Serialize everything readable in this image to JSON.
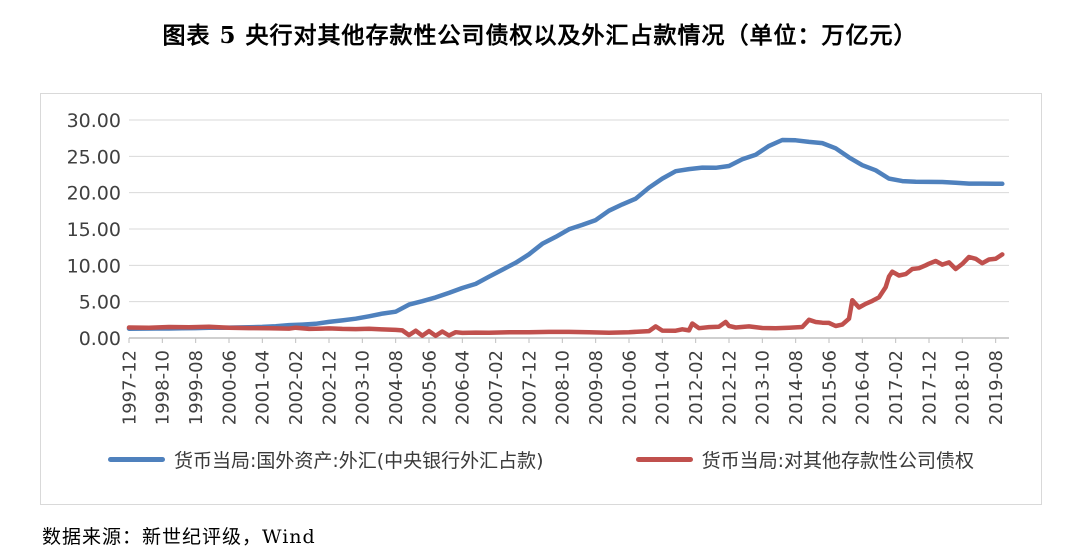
{
  "title": "图表 5  央行对其他存款性公司债权以及外汇占款情况（单位：万亿元）",
  "source_note": "数据来源：新世纪评级，Wind",
  "colors": {
    "series_fx_blue": "#4F81BD",
    "series_odc_red": "#C0504D",
    "grid": "#D9D9D9",
    "axis": "#BFBFBF",
    "tick_label": "#404040"
  },
  "chart_data": {
    "type": "line",
    "title": "央行对其他存款性公司债权以及外汇占款情况",
    "unit": "万亿元",
    "grid": "horizontal",
    "legend_position": "bottom",
    "ylim": [
      0,
      30
    ],
    "ytick_labels": [
      "0.00",
      "5.00",
      "10.00",
      "15.00",
      "20.00",
      "25.00",
      "30.00"
    ],
    "x_start": "1997-12",
    "x_total_months": 264,
    "xtick_interval_months": 10,
    "xtick_labels": [
      "1997-12",
      "1998-10",
      "1999-08",
      "2000-06",
      "2001-04",
      "2002-02",
      "2002-12",
      "2003-10",
      "2004-08",
      "2005-06",
      "2006-04",
      "2007-02",
      "2007-12",
      "2008-10",
      "2009-08",
      "2010-06",
      "2011-04",
      "2012-02",
      "2012-12",
      "2013-10",
      "2014-08",
      "2015-06",
      "2016-04",
      "2017-02",
      "2017-12",
      "2018-10",
      "2019-08"
    ],
    "series": [
      {
        "name": "货币当局:国外资产:外汇(中央银行外汇占款)",
        "color": "#4F81BD",
        "points": [
          [
            "1997-12",
            1.28
          ],
          [
            "1998-04",
            1.3
          ],
          [
            "1998-08",
            1.31
          ],
          [
            "1998-12",
            1.31
          ],
          [
            "1999-04",
            1.34
          ],
          [
            "1999-08",
            1.36
          ],
          [
            "1999-12",
            1.41
          ],
          [
            "2000-04",
            1.42
          ],
          [
            "2000-08",
            1.44
          ],
          [
            "2000-12",
            1.48
          ],
          [
            "2001-04",
            1.53
          ],
          [
            "2001-08",
            1.62
          ],
          [
            "2001-12",
            1.77
          ],
          [
            "2002-04",
            1.84
          ],
          [
            "2002-08",
            1.96
          ],
          [
            "2002-12",
            2.21
          ],
          [
            "2003-04",
            2.42
          ],
          [
            "2003-08",
            2.66
          ],
          [
            "2003-12",
            2.98
          ],
          [
            "2004-04",
            3.36
          ],
          [
            "2004-08",
            3.62
          ],
          [
            "2004-12",
            4.59
          ],
          [
            "2005-04",
            5.07
          ],
          [
            "2005-08",
            5.59
          ],
          [
            "2005-12",
            6.21
          ],
          [
            "2006-04",
            6.88
          ],
          [
            "2006-08",
            7.45
          ],
          [
            "2006-12",
            8.44
          ],
          [
            "2007-04",
            9.4
          ],
          [
            "2007-08",
            10.35
          ],
          [
            "2007-12",
            11.52
          ],
          [
            "2008-04",
            12.96
          ],
          [
            "2008-08",
            13.91
          ],
          [
            "2008-12",
            14.96
          ],
          [
            "2009-04",
            15.56
          ],
          [
            "2009-08",
            16.22
          ],
          [
            "2009-12",
            17.52
          ],
          [
            "2010-04",
            18.38
          ],
          [
            "2010-08",
            19.17
          ],
          [
            "2010-12",
            20.68
          ],
          [
            "2011-04",
            21.93
          ],
          [
            "2011-08",
            22.96
          ],
          [
            "2011-12",
            23.24
          ],
          [
            "2012-04",
            23.45
          ],
          [
            "2012-08",
            23.42
          ],
          [
            "2012-12",
            23.67
          ],
          [
            "2013-04",
            24.59
          ],
          [
            "2013-08",
            25.22
          ],
          [
            "2013-12",
            26.43
          ],
          [
            "2014-04",
            27.25
          ],
          [
            "2014-08",
            27.21
          ],
          [
            "2014-12",
            26.99
          ],
          [
            "2015-04",
            26.82
          ],
          [
            "2015-08",
            26.1
          ],
          [
            "2015-12",
            24.85
          ],
          [
            "2016-04",
            23.78
          ],
          [
            "2016-08",
            23.08
          ],
          [
            "2016-12",
            21.94
          ],
          [
            "2017-04",
            21.59
          ],
          [
            "2017-08",
            21.51
          ],
          [
            "2017-12",
            21.48
          ],
          [
            "2018-04",
            21.47
          ],
          [
            "2018-08",
            21.36
          ],
          [
            "2018-12",
            21.25
          ],
          [
            "2019-04",
            21.25
          ],
          [
            "2019-08",
            21.23
          ],
          [
            "2019-10",
            21.22
          ]
        ]
      },
      {
        "name": "货币当局:对其他存款性公司债权",
        "color": "#C0504D",
        "points": [
          [
            "1997-12",
            1.44
          ],
          [
            "1998-06",
            1.4
          ],
          [
            "1998-12",
            1.51
          ],
          [
            "1999-06",
            1.48
          ],
          [
            "1999-12",
            1.54
          ],
          [
            "2000-06",
            1.42
          ],
          [
            "2000-12",
            1.36
          ],
          [
            "2001-06",
            1.33
          ],
          [
            "2001-12",
            1.3
          ],
          [
            "2002-02",
            1.42
          ],
          [
            "2002-06",
            1.25
          ],
          [
            "2002-10",
            1.3
          ],
          [
            "2002-12",
            1.32
          ],
          [
            "2003-04",
            1.25
          ],
          [
            "2003-08",
            1.22
          ],
          [
            "2003-12",
            1.26
          ],
          [
            "2004-04",
            1.18
          ],
          [
            "2004-08",
            1.12
          ],
          [
            "2004-10",
            1.05
          ],
          [
            "2004-12",
            0.4
          ],
          [
            "2005-02",
            1.0
          ],
          [
            "2005-04",
            0.32
          ],
          [
            "2005-06",
            0.95
          ],
          [
            "2005-08",
            0.3
          ],
          [
            "2005-10",
            0.9
          ],
          [
            "2005-12",
            0.35
          ],
          [
            "2006-02",
            0.8
          ],
          [
            "2006-04",
            0.7
          ],
          [
            "2006-08",
            0.75
          ],
          [
            "2006-12",
            0.72
          ],
          [
            "2007-06",
            0.78
          ],
          [
            "2007-12",
            0.79
          ],
          [
            "2008-06",
            0.84
          ],
          [
            "2008-12",
            0.84
          ],
          [
            "2009-06",
            0.8
          ],
          [
            "2009-12",
            0.72
          ],
          [
            "2010-06",
            0.8
          ],
          [
            "2010-12",
            0.95
          ],
          [
            "2011-02",
            1.6
          ],
          [
            "2011-04",
            1.02
          ],
          [
            "2011-08",
            1.0
          ],
          [
            "2011-10",
            1.2
          ],
          [
            "2011-12",
            1.05
          ],
          [
            "2012-01",
            2.0
          ],
          [
            "2012-03",
            1.35
          ],
          [
            "2012-06",
            1.5
          ],
          [
            "2012-09",
            1.55
          ],
          [
            "2012-11",
            2.2
          ],
          [
            "2012-12",
            1.67
          ],
          [
            "2013-02",
            1.45
          ],
          [
            "2013-06",
            1.6
          ],
          [
            "2013-10",
            1.38
          ],
          [
            "2014-02",
            1.35
          ],
          [
            "2014-06",
            1.42
          ],
          [
            "2014-10",
            1.52
          ],
          [
            "2014-12",
            2.5
          ],
          [
            "2015-02",
            2.2
          ],
          [
            "2015-04",
            2.1
          ],
          [
            "2015-06",
            2.08
          ],
          [
            "2015-08",
            1.65
          ],
          [
            "2015-10",
            1.85
          ],
          [
            "2015-12",
            2.66
          ],
          [
            "2016-01",
            5.2
          ],
          [
            "2016-03",
            4.2
          ],
          [
            "2016-05",
            4.7
          ],
          [
            "2016-07",
            5.1
          ],
          [
            "2016-09",
            5.6
          ],
          [
            "2016-11",
            7.0
          ],
          [
            "2016-12",
            8.47
          ],
          [
            "2017-01",
            9.13
          ],
          [
            "2017-03",
            8.6
          ],
          [
            "2017-05",
            8.8
          ],
          [
            "2017-07",
            9.5
          ],
          [
            "2017-09",
            9.6
          ],
          [
            "2017-11",
            10.0
          ],
          [
            "2017-12",
            10.22
          ],
          [
            "2018-02",
            10.6
          ],
          [
            "2018-04",
            10.1
          ],
          [
            "2018-06",
            10.4
          ],
          [
            "2018-08",
            9.5
          ],
          [
            "2018-10",
            10.2
          ],
          [
            "2018-12",
            11.15
          ],
          [
            "2019-02",
            10.9
          ],
          [
            "2019-04",
            10.3
          ],
          [
            "2019-06",
            10.8
          ],
          [
            "2019-08",
            10.9
          ],
          [
            "2019-10",
            11.5
          ]
        ]
      }
    ]
  }
}
